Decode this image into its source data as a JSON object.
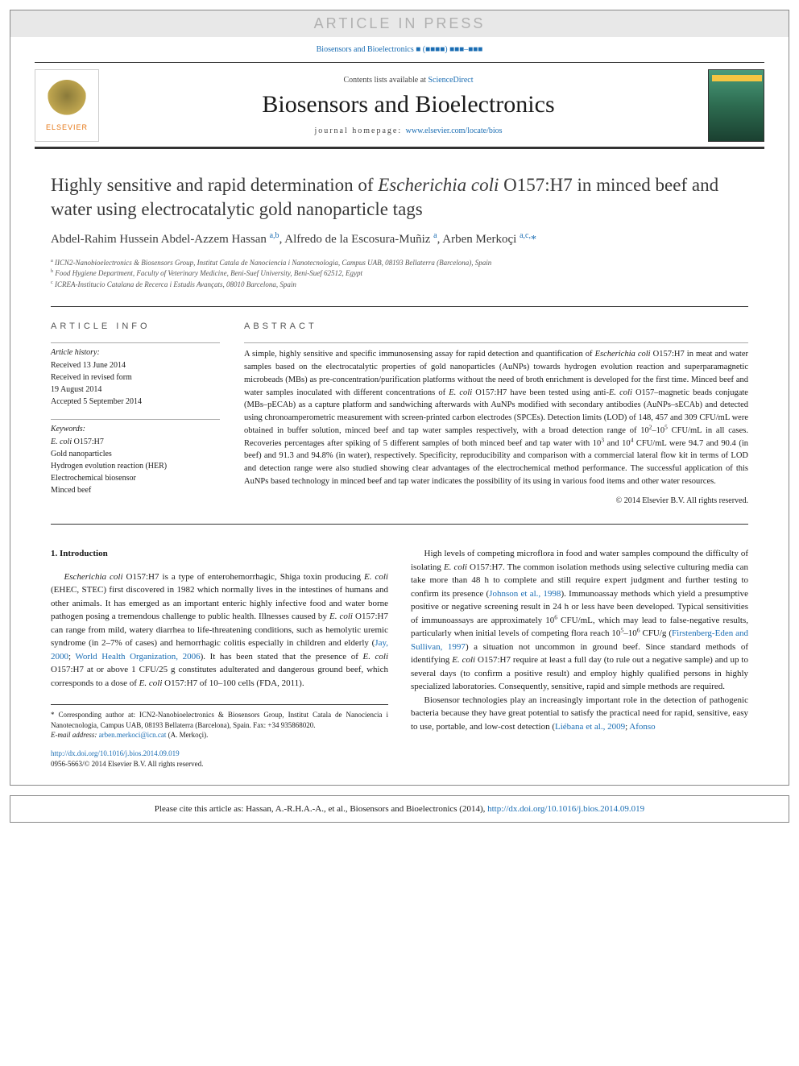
{
  "colors": {
    "link": "#1a6db3",
    "text": "#1a1a1a",
    "muted": "#555555",
    "banner_bg": "#e8e8e8",
    "banner_text": "#b0b0b0",
    "border": "#333333",
    "elsevier_orange": "#e67817"
  },
  "typography": {
    "body_font": "Georgia, serif",
    "title_size_pt": 17,
    "body_size_pt": 8,
    "abstract_size_pt": 8
  },
  "banner": "ARTICLE IN PRESS",
  "journal_ref": "Biosensors and Bioelectronics ■ (■■■■) ■■■–■■■",
  "header": {
    "contents_prefix": "Contents lists available at ",
    "contents_link": "ScienceDirect",
    "journal": "Biosensors and Bioelectronics",
    "homepage_label": "journal homepage: ",
    "homepage_url": "www.elsevier.com/locate/bios",
    "publisher": "ELSEVIER"
  },
  "title": "Highly sensitive and rapid determination of <em>Escherichia coli</em> O157:H7 in minced beef and water using electrocatalytic gold nanoparticle tags",
  "authors_html": "Abdel-Rahim Hussein Abdel-Azzem Hassan <sup>a,b</sup>, Alfredo de la Escosura-Muñiz <sup>a</sup>, Arben Merkoçi <sup>a,c,</sup><span class='star'>*</span>",
  "affiliations": [
    {
      "sup": "a",
      "text": "IICN2-Nanobioelectronics & Biosensors Group, Institut Catala de Nanociencia i Nanotecnologia, Campus UAB, 08193 Bellaterra (Barcelona), Spain"
    },
    {
      "sup": "b",
      "text": "Food Hygiene Department, Faculty of Veterinary Medicine, Beni-Suef University, Beni-Suef 62512, Egypt"
    },
    {
      "sup": "c",
      "text": "ICREA-Institucio Catalana de Recerca i Estudis Avançats, 08010 Barcelona, Spain"
    }
  ],
  "article_info": {
    "head": "ARTICLE INFO",
    "history_label": "Article history:",
    "history": "Received 13 June 2014\nReceived in revised form\n19 August 2014\nAccepted 5 September 2014",
    "keywords_label": "Keywords:",
    "keywords": "E. coli O157:H7\nGold nanoparticles\nHydrogen evolution reaction (HER)\nElectrochemical biosensor\nMinced beef"
  },
  "abstract": {
    "head": "ABSTRACT",
    "text": "A simple, highly sensitive and specific immunosensing assay for rapid detection and quantification of <em>Escherichia coli</em> O157:H7 in meat and water samples based on the electrocatalytic properties of gold nanoparticles (AuNPs) towards hydrogen evolution reaction and superparamagnetic microbeads (MBs) as pre-concentration/purification platforms without the need of broth enrichment is developed for the first time. Minced beef and water samples inoculated with different concentrations of <em>E. coli</em> O157:H7 have been tested using anti-<em>E. coli</em> O157–magnetic beads conjugate (MBs–pECAb) as a capture platform and sandwiching afterwards with AuNPs modified with secondary antibodies (AuNPs–sECAb) and detected using chronoamperometric measurement with screen-printed carbon electrodes (SPCEs). Detection limits (LOD) of 148, 457 and 309 CFU/mL were obtained in buffer solution, minced beef and tap water samples respectively, with a broad detection range of 10<sup>2</sup>–10<sup>5</sup> CFU/mL in all cases. Recoveries percentages after spiking of 5 different samples of both minced beef and tap water with 10<sup>3</sup> and 10<sup>4</sup> CFU/mL were 94.7 and 90.4 (in beef) and 91.3 and 94.8% (in water), respectively. Specificity, reproducibility and comparison with a commercial lateral flow kit in terms of LOD and detection range were also studied showing clear advantages of the electrochemical method performance. The successful application of this AuNPs based technology in minced beef and tap water indicates the possibility of its using in various food items and other water resources.",
    "copyright": "© 2014 Elsevier B.V. All rights reserved."
  },
  "sections": {
    "intro_head": "1.  Introduction",
    "col1_p1": "<em>Escherichia coli</em> O157:H7 is a type of enterohemorrhagic, Shiga toxin producing <em>E. coli</em> (EHEC, STEC) first discovered in 1982 which normally lives in the intestines of humans and other animals. It has emerged as an important enteric highly infective food and water borne pathogen posing a tremendous challenge to public health. Illnesses caused by <em>E. coli</em> O157:H7 can range from mild, watery diarrhea to life-threatening conditions, such as hemolytic uremic syndrome (in 2–7% of cases) and hemorrhagic colitis especially in children and elderly (<a>Jay, 2000</a>; <a>World Health Organization, 2006</a>). It has been stated that the presence of <em>E. coli</em> O157:H7 at or above 1 CFU/25 g constitutes adulterated and dangerous ground beef, which corresponds to a dose of <em>E. coli</em> O157:H7 of 10–100 cells (FDA, 2011).",
    "col2_p1": "High levels of competing microflora in food and water samples compound the difficulty of isolating <em>E. coli</em> O157:H7. The common isolation methods using selective culturing media can take more than 48 h to complete and still require expert judgment and further testing to confirm its presence (<a>Johnson et al., 1998</a>). Immunoassay methods which yield a presumptive positive or negative screening result in 24 h or less have been developed. Typical sensitivities of immunoassays are approximately 10<sup>6</sup> CFU/mL, which may lead to false-negative results, particularly when initial levels of competing flora reach 10<sup>5</sup>–10<sup>6</sup> CFU/g (<a>Firstenberg-Eden and Sullivan, 1997</a>) a situation not uncommon in ground beef. Since standard methods of identifying <em>E. coli</em> O157:H7 require at least a full day (to rule out a negative sample) and up to several days (to confirm a positive result) and employ highly qualified persons in highly specialized laboratories. Consequently, sensitive, rapid and simple methods are required.",
    "col2_p2": "Biosensor technologies play an increasingly important role in the detection of pathogenic bacteria because they have great potential to satisfy the practical need for rapid, sensitive, easy to use, portable, and low-cost detection (<a>Liébana et al., 2009</a>; <a>Afonso</a>"
  },
  "footnotes": {
    "corr": "* Corresponding author at: ICN2-Nanobioelectronics & Biosensors Group, Institut Catala de Nanociencia i Nanotecnologia, Campus UAB, 08193 Bellaterra (Barcelona), Spain. Fax: +34 935868020.",
    "email_label": "E-mail address: ",
    "email": "arben.merkoci@icn.cat",
    "email_name": " (A. Merkoçi).",
    "doi_url": "http://dx.doi.org/10.1016/j.bios.2014.09.019",
    "issn_line": "0956-5663/© 2014 Elsevier B.V. All rights reserved."
  },
  "cite_box": {
    "prefix": "Please cite this article as: Hassan, A.-R.H.A.-A., et al., Biosensors and Bioelectronics (2014), ",
    "url": "http://dx.doi.org/10.1016/j.bios.2014.09.019"
  }
}
